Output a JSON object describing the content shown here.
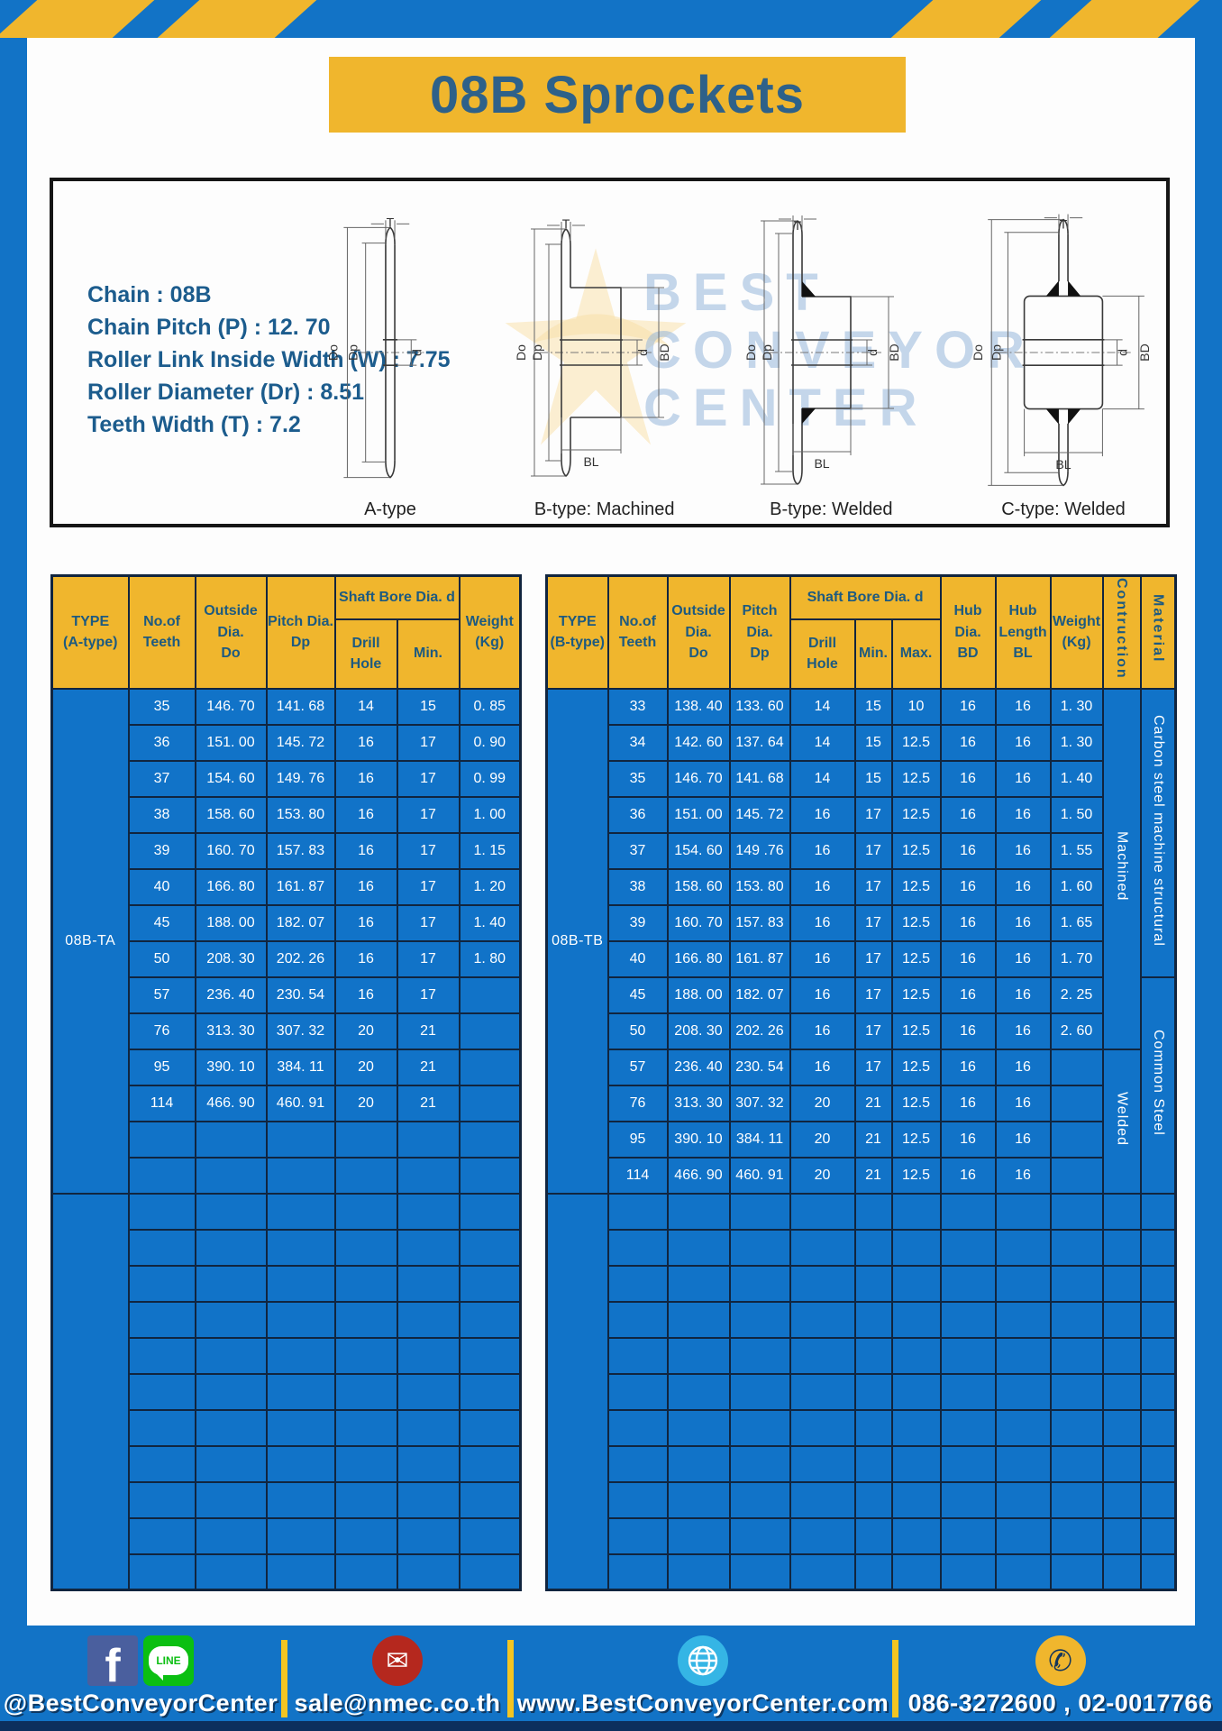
{
  "title": "08B Sprockets",
  "specs": [
    "Chain : 08B",
    "Chain Pitch (P) : 12. 70",
    "Roller Link Inside Width (W) : 7.75",
    "Roller Diameter (Dr) : 8.51",
    "Teeth Width (T) : 7.2"
  ],
  "watermark": "BEST\nCONVEYOR\nCENTER",
  "dims": {
    "t": "T",
    "outside": "Do",
    "pitch": "Dp",
    "bore": "d",
    "hub_dia": "BD",
    "hub_len": "BL"
  },
  "diagrams": [
    {
      "label": "A-type"
    },
    {
      "label": "B-type: Machined"
    },
    {
      "label": "B-type: Welded"
    },
    {
      "label": "C-type: Welded"
    }
  ],
  "left_table": {
    "header": {
      "type": "TYPE\n(A-type)",
      "teeth": "No.of\nTeeth",
      "outside": "Outside\nDia.\nDo",
      "pitch": "Pitch Dia.\nDp",
      "shaft_bore": "Shaft Bore Dia. d",
      "drill": "Drill Hole",
      "min": "Min.",
      "weight": "Weight\n(Kg)"
    },
    "group1": {
      "type_label": "08B-TA",
      "rows": [
        [
          "35",
          "146. 70",
          "141. 68",
          "14",
          "15",
          "0. 85"
        ],
        [
          "36",
          "151. 00",
          "145. 72",
          "16",
          "17",
          "0. 90"
        ],
        [
          "37",
          "154. 60",
          "149. 76",
          "16",
          "17",
          "0. 99"
        ],
        [
          "38",
          "158. 60",
          "153. 80",
          "16",
          "17",
          "1. 00"
        ],
        [
          "39",
          "160. 70",
          "157. 83",
          "16",
          "17",
          "1. 15"
        ],
        [
          "40",
          "166. 80",
          "161. 87",
          "16",
          "17",
          "1. 20"
        ],
        [
          "45",
          "188. 00",
          "182. 07",
          "16",
          "17",
          "1. 40"
        ],
        [
          "50",
          "208. 30",
          "202. 26",
          "16",
          "17",
          "1. 80"
        ],
        [
          "57",
          "236. 40",
          "230. 54",
          "16",
          "17",
          ""
        ],
        [
          "76",
          "313. 30",
          "307. 32",
          "20",
          "21",
          ""
        ],
        [
          "95",
          "390. 10",
          "384. 11",
          "20",
          "21",
          ""
        ],
        [
          "114",
          "466. 90",
          "460. 91",
          "20",
          "21",
          ""
        ]
      ],
      "empty_rows": 2
    },
    "group2": {
      "type_label": "",
      "empty_rows": 11
    }
  },
  "right_table": {
    "header": {
      "type": "TYPE\n(B-type)",
      "teeth": "No.of\nTeeth",
      "outside": "Outside\nDia.\nDo",
      "pitch": "Pitch Dia.\nDp",
      "shaft_bore": "Shaft Bore Dia. d",
      "drill": "Drill Hole",
      "min": "Min.",
      "max": "Max.",
      "hub_dia": "Hub Dia.\nBD",
      "hub_len": "Hub\nLength\nBL",
      "weight": "Weight\n(Kg)",
      "construction": "Contruction",
      "material": "Material"
    },
    "group1": {
      "type_label": "08B-TB",
      "rows": [
        [
          "33",
          "138. 40",
          "133. 60",
          "14",
          "15",
          "10",
          "16",
          "16",
          "1. 30"
        ],
        [
          "34",
          "142. 60",
          "137. 64",
          "14",
          "15",
          "12.5",
          "16",
          "16",
          "1. 30"
        ],
        [
          "35",
          "146. 70",
          "141. 68",
          "14",
          "15",
          "12.5",
          "16",
          "16",
          "1. 40"
        ],
        [
          "36",
          "151. 00",
          "145. 72",
          "16",
          "17",
          "12.5",
          "16",
          "16",
          "1. 50"
        ],
        [
          "37",
          "154. 60",
          "149 .76",
          "16",
          "17",
          "12.5",
          "16",
          "16",
          "1. 55"
        ],
        [
          "38",
          "158. 60",
          "153. 80",
          "16",
          "17",
          "12.5",
          "16",
          "16",
          "1. 60"
        ],
        [
          "39",
          "160. 70",
          "157. 83",
          "16",
          "17",
          "12.5",
          "16",
          "16",
          "1. 65"
        ],
        [
          "40",
          "166. 80",
          "161. 87",
          "16",
          "17",
          "12.5",
          "16",
          "16",
          "1. 70"
        ],
        [
          "45",
          "188. 00",
          "182. 07",
          "16",
          "17",
          "12.5",
          "16",
          "16",
          "2. 25"
        ],
        [
          "50",
          "208. 30",
          "202. 26",
          "16",
          "17",
          "12.5",
          "16",
          "16",
          "2. 60"
        ],
        [
          "57",
          "236. 40",
          "230. 54",
          "16",
          "17",
          "12.5",
          "16",
          "16",
          ""
        ],
        [
          "76",
          "313. 30",
          "307. 32",
          "20",
          "21",
          "12.5",
          "16",
          "16",
          ""
        ],
        [
          "95",
          "390. 10",
          "384. 11",
          "20",
          "21",
          "12.5",
          "16",
          "16",
          ""
        ],
        [
          "114",
          "466. 90",
          "460. 91",
          "20",
          "21",
          "12.5",
          "16",
          "16",
          ""
        ]
      ],
      "construction_spans": [
        {
          "label": "Machined",
          "rows": 10
        },
        {
          "label": "Welded",
          "rows": 4
        }
      ],
      "material_spans": [
        {
          "label": "Carbon steel  machine structural",
          "rows": 8
        },
        {
          "label": "Common  Steel",
          "rows": 6
        }
      ]
    },
    "group2": {
      "type_label": "",
      "empty_rows": 11
    }
  },
  "footer": {
    "facebook_letter": "f",
    "line_badge_text": "LINE",
    "items": [
      {
        "icon": "facebook-line-icons",
        "label": "@BestConveyorCenter"
      },
      {
        "icon": "email-icon",
        "label": "sale@nmec.co.th"
      },
      {
        "icon": "globe-icon",
        "label": "www.BestConveyorCenter.com"
      },
      {
        "icon": "phone-icon",
        "label": "086-3272600 , 02-0017766"
      }
    ]
  },
  "colors": {
    "frame_blue": "#1273c6",
    "cell_blue": "#1173c8",
    "accent_yellow": "#f0b62d",
    "header_text_blue": "#1d5a80",
    "title_text_blue": "#2e6189",
    "grid_border": "#11253f",
    "footer_dark_strip": "#0c2f5d"
  }
}
